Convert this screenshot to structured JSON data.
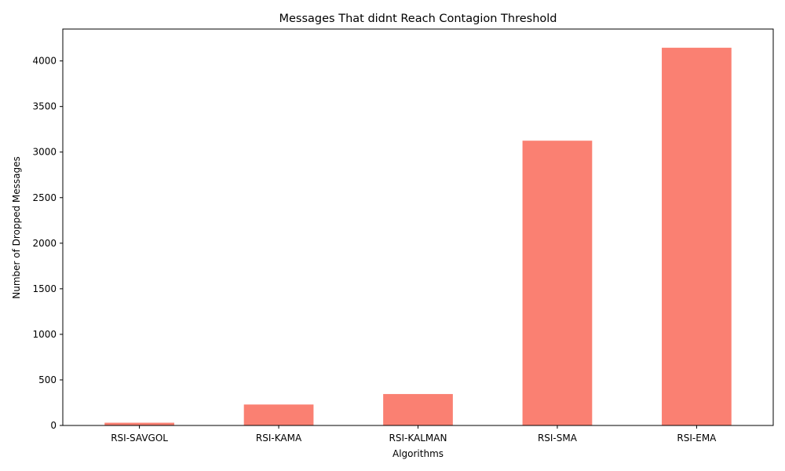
{
  "chart_data": {
    "type": "bar",
    "title": "Messages That didnt Reach Contagion Threshold",
    "xlabel": "Algorithms",
    "ylabel": "Number of Dropped Messages",
    "categories": [
      "RSI-SAVGOL",
      "RSI-KAMA",
      "RSI-KALMAN",
      "RSI-SMA",
      "RSI-EMA"
    ],
    "values": [
      30,
      230,
      345,
      3125,
      4145
    ],
    "ylim": [
      0,
      4350
    ],
    "yticks": [
      0,
      500,
      1000,
      1500,
      2000,
      2500,
      3000,
      3500,
      4000
    ],
    "grid": false,
    "bar_color": "#fa8072"
  }
}
